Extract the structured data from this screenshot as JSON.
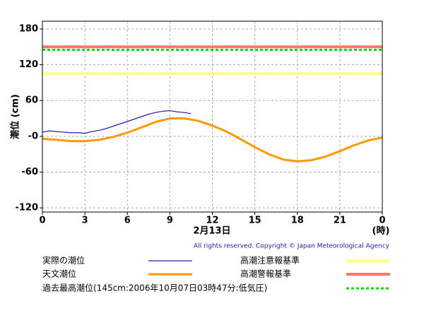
{
  "chart_data": {
    "type": "line",
    "y_label": "潮位 (cm)",
    "x_label": "2月13日",
    "x_unit": "(時)",
    "copyright": "All rights reserved. Copyright © Japan Meteorological Agency",
    "xlim": [
      0,
      24
    ],
    "xticks": [
      0,
      3,
      6,
      9,
      12,
      15,
      18,
      21,
      {
        "value": 24,
        "label": "0"
      }
    ],
    "ylim": [
      -127,
      193
    ],
    "yticks": [
      180,
      120,
      60,
      {
        "value": 0,
        "label": "-0"
      },
      -60,
      -120
    ],
    "grid": true,
    "series": [
      {
        "name": "実際の潮位",
        "color": "#3311bb",
        "x": [
          0,
          0.5,
          1,
          1.5,
          2,
          2.5,
          3,
          3.5,
          4,
          4.5,
          5,
          5.5,
          6,
          6.5,
          7,
          7.5,
          8,
          8.5,
          9,
          9.5,
          10,
          10.5
        ],
        "values": [
          7,
          9,
          8,
          7,
          6,
          6,
          5,
          8,
          10,
          13,
          17,
          21,
          25,
          29,
          33,
          37,
          40,
          42,
          43,
          41,
          40,
          38
        ]
      },
      {
        "name": "天文潮位",
        "color": "#ff9900",
        "x": [
          0,
          1,
          2,
          3,
          4,
          5,
          6,
          7,
          8,
          9,
          10,
          11,
          12,
          13,
          14,
          15,
          16,
          17,
          18,
          19,
          20,
          21,
          22,
          23,
          24
        ],
        "values": [
          -4,
          -6,
          -8,
          -8,
          -6,
          -1,
          6,
          15,
          24,
          30,
          30,
          26,
          18,
          8,
          -5,
          -18,
          -30,
          -39,
          -42,
          -40,
          -34,
          -25,
          -15,
          -7,
          -2
        ]
      }
    ],
    "reference_lines": [
      {
        "name": "高潮注意報基準",
        "value": 105,
        "color": "#ffff88",
        "dashed": false
      },
      {
        "name": "高潮警報基準",
        "value": 150,
        "color": "#ff7766",
        "dashed": false
      },
      {
        "name": "過去最高潮位(145cm:2006年10月07日03時47分:低気圧)",
        "value": 145,
        "color": "#00dd00",
        "dashed": true
      }
    ]
  }
}
